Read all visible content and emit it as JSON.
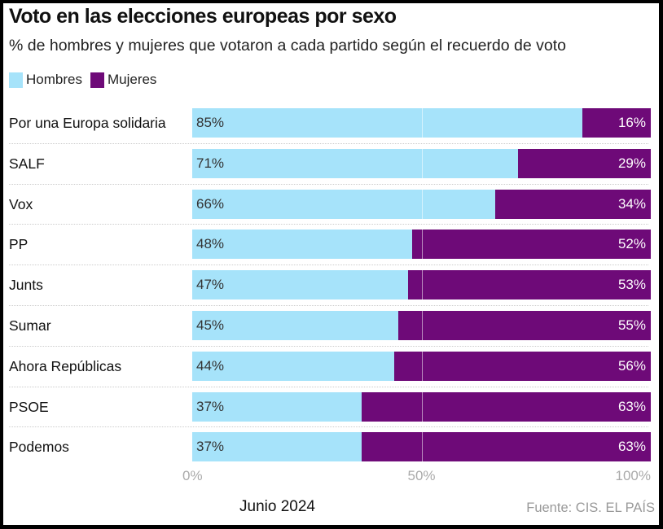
{
  "chart_data": {
    "type": "bar",
    "stacked": true,
    "orientation": "horizontal",
    "title": "Voto en las elecciones europeas por sexo",
    "subtitle": "% de hombres y mujeres que votaron a cada partido según el recuerdo de voto",
    "categories": [
      "Por una Europa solidaria",
      "SALF",
      "Vox",
      "PP",
      "Junts",
      "Sumar",
      "Ahora Repúblicas",
      "PSOE",
      "Podemos"
    ],
    "series": [
      {
        "name": "Hombres",
        "color": "#a6e3fa",
        "values": [
          85,
          71,
          66,
          48,
          47,
          45,
          44,
          37,
          37
        ]
      },
      {
        "name": "Mujeres",
        "color": "#6e0a78",
        "values": [
          16,
          29,
          34,
          52,
          53,
          55,
          56,
          63,
          63
        ]
      }
    ],
    "xlim": [
      0,
      100
    ],
    "xticks": [
      "0%",
      "50%",
      "100%"
    ],
    "xtick_values": [
      0,
      50,
      100
    ],
    "legend_position": "top-left",
    "grid": true,
    "note": "Junio 2024",
    "source": "Fuente: CIS. EL PAÍS"
  }
}
